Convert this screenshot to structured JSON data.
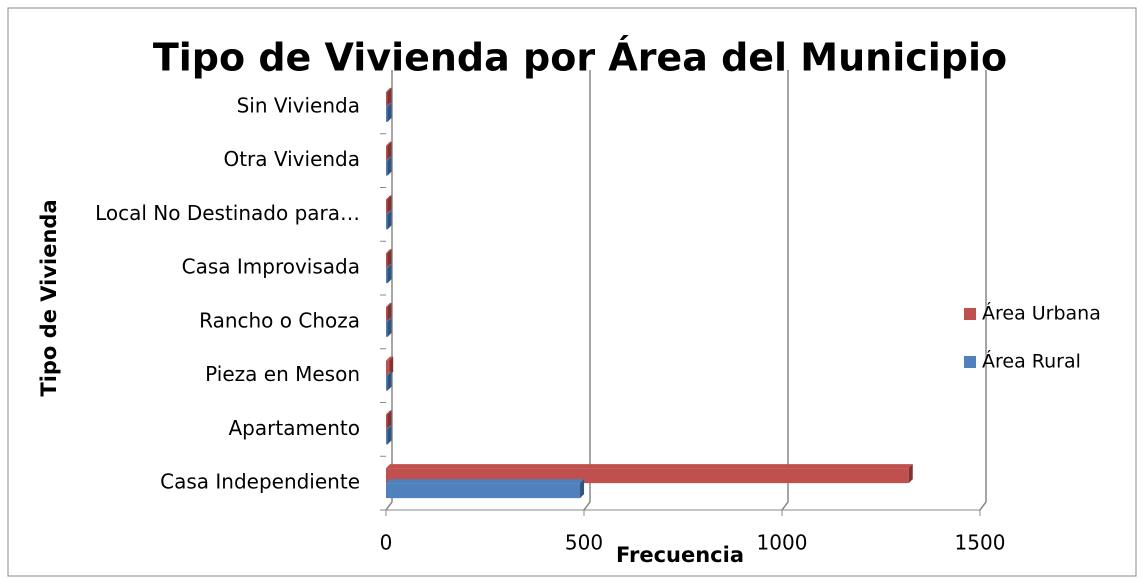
{
  "chart_data": {
    "type": "bar",
    "orientation": "horizontal",
    "title": "Tipo de Vivienda por Área del Municipio",
    "x_label": "Frecuencia",
    "y_label": "Tipo de Vivienda",
    "categories": [
      "Casa Independiente",
      "Apartamento",
      "Pieza en Meson",
      "Rancho o Choza",
      "Casa Improvisada",
      "Local No Destinado para…",
      "Otra Vivienda",
      "Sin Vivienda"
    ],
    "series": [
      {
        "name": "Área Urbana",
        "color": "#c0504d",
        "values": [
          1320,
          3,
          8,
          3,
          3,
          3,
          3,
          3
        ]
      },
      {
        "name": "Área Rural",
        "color": "#4f81bd",
        "values": [
          490,
          2,
          2,
          3,
          2,
          1,
          2,
          1
        ]
      }
    ],
    "xlim": [
      0,
      1500
    ],
    "xticks": [
      0,
      500,
      1000,
      1500
    ],
    "grid": true,
    "legend": "right"
  }
}
